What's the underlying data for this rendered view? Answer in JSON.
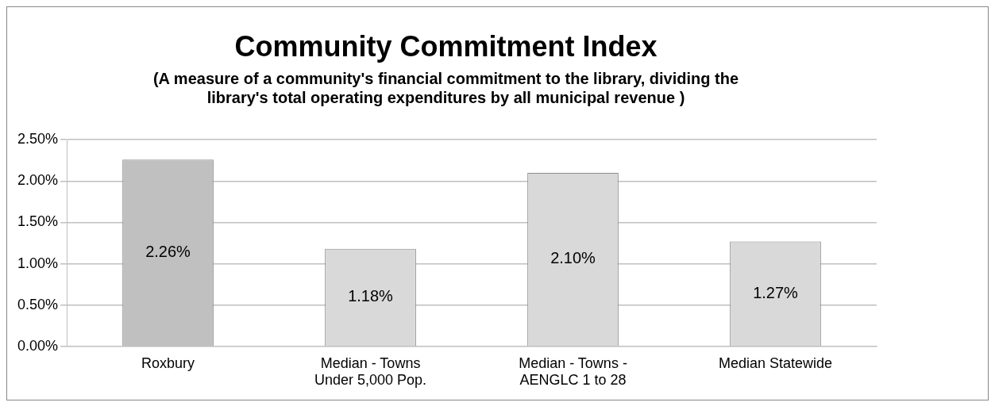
{
  "chart_data": {
    "type": "bar",
    "title": "Community Commitment Index",
    "subtitle": "(A measure of a community's financial commitment to the library, dividing the library's total operating expenditures by all municipal revenue )",
    "categories": [
      "Roxbury",
      "Median - Towns Under 5,000 Pop.",
      "Median - Towns - AENGLC 1 to 28",
      "Median Statewide"
    ],
    "values": [
      2.26,
      1.18,
      2.1,
      1.27
    ],
    "colors": [
      "#c0c0c0",
      "#d9d9d9",
      "#d9d9d9",
      "#d9d9d9"
    ],
    "value_labels": [
      "2.26%",
      "1.18%",
      "2.10%",
      "1.27%"
    ],
    "ylim": [
      0,
      2.5
    ],
    "yticks": [
      {
        "value": 0,
        "label": "0.00%"
      },
      {
        "value": 0.5,
        "label": "0.50%"
      },
      {
        "value": 1,
        "label": "1.00%"
      },
      {
        "value": 1.5,
        "label": "1.50%"
      },
      {
        "value": 2,
        "label": "2.00%"
      },
      {
        "value": 2.5,
        "label": "2.50%"
      }
    ],
    "grid": "y"
  }
}
